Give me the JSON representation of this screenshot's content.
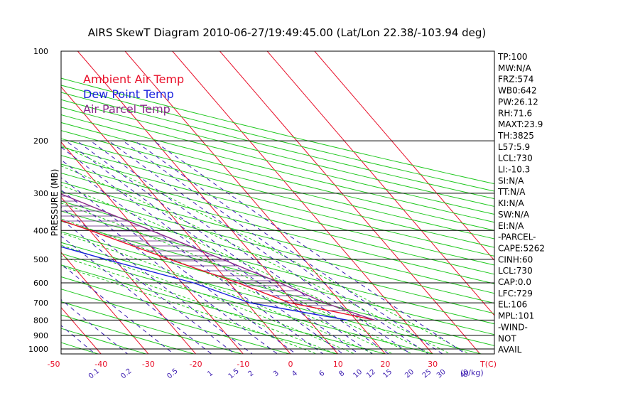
{
  "title": "AIRS SkewT Diagram 2010-06-27/19:49:45.00 (Lat/Lon 22.38/-103.94 deg)",
  "legend": [
    {
      "label": "Ambient Air Temp",
      "color": "#e8102a"
    },
    {
      "label": "Dew Point Temp",
      "color": "#1a22dd"
    },
    {
      "label": "Air Parcel Temp",
      "color": "#8a2a8a"
    }
  ],
  "colors": {
    "isotherm": "#e8102a",
    "dry_adiabat": "#1ec81e",
    "moist_adiabat": "#1ec81e",
    "mixing_ratio": "#3a1ab0",
    "isobar": "#000000",
    "hatch": "#5a1a7a"
  },
  "chart_data": {
    "type": "line",
    "ylabel": "PRESSURE (MB)",
    "xlabel": "T(C)",
    "mixing_ratio_unit": "(g/kg)",
    "yscale": "log",
    "ylim": [
      100,
      1050
    ],
    "pressure_ticks": [
      100,
      200,
      300,
      400,
      500,
      600,
      700,
      800,
      900,
      1000
    ],
    "bottom_temp_ticks": [
      -50,
      -40,
      -30,
      -20,
      -10,
      0,
      10,
      20,
      30
    ],
    "top_temp_ticks": [
      -120,
      -110,
      -100,
      -90,
      -80,
      -70,
      -60,
      -50,
      -40
    ],
    "mixing_ratio_ticks": [
      "0.1",
      "0.2",
      "0.5",
      "1",
      "1.5",
      "2",
      "3",
      "4",
      "6",
      "8",
      "10",
      "12",
      "15",
      "20",
      "25",
      "30",
      "40"
    ],
    "series": [
      {
        "name": "Ambient Air Temp",
        "points": [
          [
            100,
            -79.7
          ],
          [
            125,
            -77.8
          ],
          [
            150,
            -69.5
          ],
          [
            175,
            -63.4
          ],
          [
            200,
            -57.8
          ],
          [
            250,
            -44.9
          ],
          [
            300,
            -36.0
          ],
          [
            400,
            -19.8
          ],
          [
            500,
            -8.4
          ],
          [
            600,
            1.8
          ],
          [
            700,
            9.1
          ],
          [
            750,
            17.0
          ],
          [
            800,
            23.9
          ]
        ]
      },
      {
        "name": "Dew Point Temp",
        "points": [
          [
            100,
            -104.1
          ],
          [
            150,
            -98.7
          ],
          [
            200,
            -91.5
          ],
          [
            250,
            -82.9
          ],
          [
            300,
            -67.0
          ],
          [
            400,
            -38.3
          ],
          [
            500,
            -21.8
          ],
          [
            600,
            -7.6
          ],
          [
            700,
            0.7
          ],
          [
            800,
            18.2
          ]
        ]
      },
      {
        "name": "Air Parcel Temp",
        "points": [
          [
            100,
            -78.6
          ],
          [
            150,
            -58.9
          ],
          [
            200,
            -42.7
          ],
          [
            250,
            -29.1
          ],
          [
            300,
            -19.7
          ],
          [
            400,
            -7.0
          ],
          [
            500,
            2.8
          ],
          [
            600,
            10.6
          ],
          [
            700,
            16.5
          ],
          [
            750,
            20.2
          ],
          [
            800,
            23.9
          ]
        ]
      }
    ]
  },
  "indices": [
    "TP:100",
    "MW:N/A",
    "FRZ:574",
    "WB0:642",
    "PW:26.12",
    "RH:71.6",
    "MAXT:23.9",
    "TH:3825",
    "L57:5.9",
    "LCL:730",
    "LI:-10.3",
    "SI:N/A",
    "TT:N/A",
    "KI:N/A",
    "SW:N/A",
    "EI:N/A",
    "-PARCEL-",
    "CAPE:5262",
    "CINH:60",
    "LCL:730",
    "CAP:0.0",
    "LFC:729",
    "EL:106",
    "MPL:101",
    "-WIND-",
    "NOT",
    "AVAIL"
  ]
}
